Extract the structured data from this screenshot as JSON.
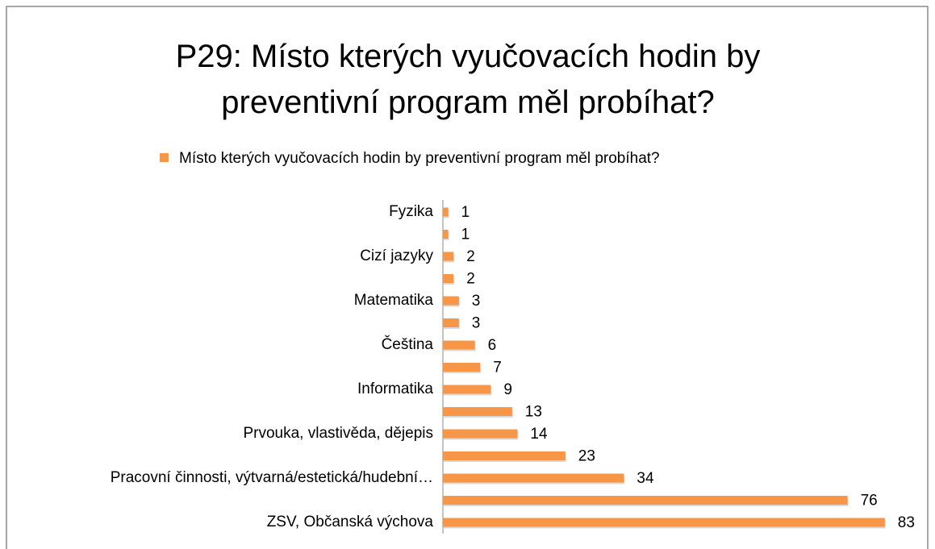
{
  "chart_data": {
    "type": "hbar",
    "title": "P29: Místo kterých vyučovacích hodin by preventivní program měl probíhat?",
    "categories": [
      "Fyzika",
      null,
      "Cizí jazyky",
      null,
      "Matematika",
      null,
      "Čeština",
      null,
      "Informatika",
      null,
      "Prvouka, vlastivěda, dějepis",
      null,
      "Pracovní činnosti, výtvarná/estetická/hudební…",
      null,
      "ZSV, Občanská výchova"
    ],
    "series": [
      {
        "name": "Místo kterých vyučovacích hodin by preventivní program měl probíhat?",
        "color": "#f79646",
        "values": [
          1,
          1,
          2,
          2,
          3,
          3,
          6,
          7,
          9,
          13,
          14,
          23,
          34,
          76,
          83
        ]
      }
    ],
    "xlim": [
      0,
      90
    ],
    "legend": "top"
  }
}
